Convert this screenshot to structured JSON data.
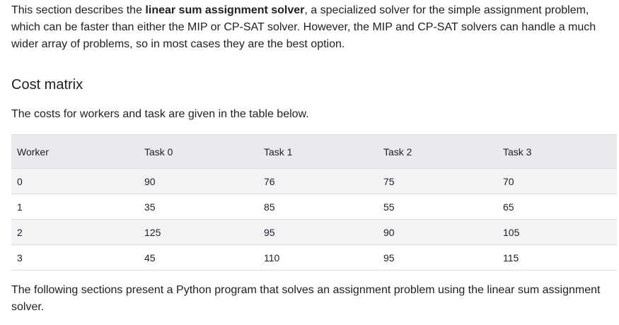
{
  "intro": {
    "text_before": "This section describes the ",
    "bold": "linear sum assignment solver",
    "text_after": ", a specialized solver for the simple assignment problem, which can be faster than either the MIP or CP-SAT solver. However, the MIP and CP-SAT solvers can handle a much wider array of problems, so in most cases they are the best option."
  },
  "section": {
    "heading": "Cost matrix",
    "caption": "The costs for workers and task are given in the table below."
  },
  "table": {
    "headers": [
      "Worker",
      "Task 0",
      "Task 1",
      "Task 2",
      "Task 3"
    ],
    "rows": [
      [
        "0",
        "90",
        "76",
        "75",
        "70"
      ],
      [
        "1",
        "35",
        "85",
        "55",
        "65"
      ],
      [
        "2",
        "125",
        "95",
        "90",
        "105"
      ],
      [
        "3",
        "45",
        "110",
        "95",
        "115"
      ]
    ]
  },
  "outro": {
    "text": "The following sections present a Python program that solves an assignment problem using the linear sum assignment solver."
  }
}
